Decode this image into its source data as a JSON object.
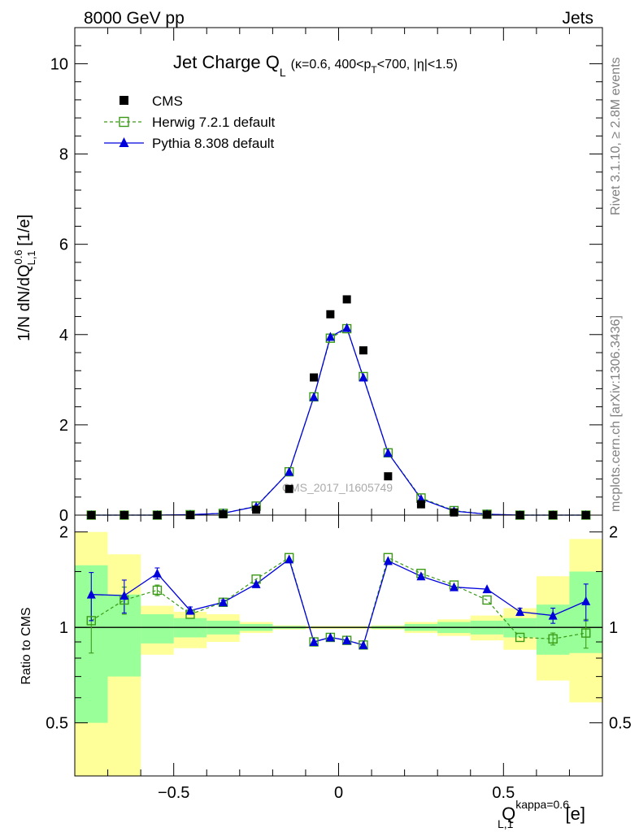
{
  "header": {
    "left": "8000 GeV pp",
    "right": "Jets"
  },
  "side_labels": {
    "rivet": "Rivet 3.1.10, ≥ 2.8M events",
    "mcplots": "mcplots.cern.ch [arXiv:1306.3436]"
  },
  "watermark": "CMS_2017_I1605749",
  "chart_data": [
    {
      "type": "scatter",
      "panel": "main",
      "title": {
        "main": "Jet Charge Q",
        "sub": "L",
        "cond_a": "(κ=0.6, 400<p",
        "cond_sub": "T",
        "cond_b": "<700, |η|<1.5)"
      },
      "ylabel": "1/N dN/dQ_{L,1}^{0.6} [1/e]",
      "xlabel": "Q_{L,1}^{kappa=0.6} [e]",
      "xlim": [
        -0.8,
        0.8
      ],
      "ylim": [
        0,
        10.8
      ],
      "yticks": [
        "0",
        "2",
        "4",
        "6",
        "8",
        "10"
      ],
      "x": [
        -0.75,
        -0.65,
        -0.55,
        -0.45,
        -0.35,
        -0.25,
        -0.15,
        -0.075,
        -0.025,
        0.025,
        0.075,
        0.15,
        0.25,
        0.35,
        0.45,
        0.55,
        0.65,
        0.75
      ],
      "series": [
        {
          "name": "CMS",
          "style": "data",
          "color": "#000000",
          "values": [
            0.0,
            0.0,
            0.0,
            0.0,
            0.02,
            0.12,
            0.58,
            3.05,
            4.45,
            4.78,
            3.65,
            0.86,
            0.24,
            0.06,
            0.01,
            0.0,
            0.0,
            0.0
          ]
        },
        {
          "name": "Herwig 7.2.1 default",
          "style": "dashed-open-square",
          "color": "#3a9a16",
          "values": [
            0.0,
            0.0,
            0.0,
            0.01,
            0.04,
            0.2,
            0.96,
            2.62,
            3.92,
            4.13,
            3.07,
            1.38,
            0.38,
            0.1,
            0.02,
            0.0,
            0.0,
            0.0
          ]
        },
        {
          "name": "Pythia 8.308 default",
          "style": "solid-filled-triangle",
          "color": "#0000dd",
          "values": [
            0.0,
            0.0,
            0.0,
            0.01,
            0.04,
            0.19,
            0.96,
            2.62,
            3.95,
            4.15,
            3.05,
            1.38,
            0.36,
            0.09,
            0.02,
            0.0,
            0.0,
            0.0
          ]
        }
      ]
    },
    {
      "type": "line",
      "panel": "ratio",
      "ylabel": "Ratio to CMS",
      "xlim": [
        -0.8,
        0.8
      ],
      "ylim": [
        0.34,
        2.26
      ],
      "yticks": [
        "0.5",
        "1",
        "2"
      ],
      "xticks": [
        "−0.5",
        "0",
        "0.5"
      ],
      "reference": 1,
      "bands": {
        "bins": [
          [
            -0.8,
            -0.7
          ],
          [
            -0.7,
            -0.6
          ],
          [
            -0.6,
            -0.5
          ],
          [
            -0.5,
            -0.4
          ],
          [
            -0.4,
            -0.3
          ],
          [
            -0.3,
            -0.2
          ],
          [
            -0.2,
            -0.1
          ],
          [
            -0.1,
            -0.05
          ],
          [
            -0.05,
            0.0
          ],
          [
            0.0,
            0.05
          ],
          [
            0.05,
            0.1
          ],
          [
            0.1,
            0.2
          ],
          [
            0.2,
            0.3
          ],
          [
            0.3,
            0.4
          ],
          [
            0.4,
            0.5
          ],
          [
            0.5,
            0.6
          ],
          [
            0.6,
            0.7
          ],
          [
            0.7,
            0.8
          ]
        ],
        "green_color": "#99ff99",
        "yellow_color": "#ffff99",
        "green_lo": [
          0.5,
          0.7,
          0.89,
          0.93,
          0.95,
          0.975,
          0.99,
          0.995,
          0.995,
          0.995,
          0.995,
          0.99,
          0.975,
          0.96,
          0.95,
          0.93,
          0.82,
          0.83
        ],
        "green_hi": [
          1.57,
          1.27,
          1.1,
          1.07,
          1.05,
          1.025,
          1.01,
          1.005,
          1.005,
          1.005,
          1.005,
          1.01,
          1.025,
          1.04,
          1.05,
          1.07,
          1.18,
          1.5
        ],
        "yellow_lo": [
          0.34,
          0.34,
          0.82,
          0.86,
          0.9,
          0.96,
          0.985,
          0.99,
          0.99,
          0.99,
          0.99,
          0.985,
          0.96,
          0.94,
          0.91,
          0.85,
          0.68,
          0.58
        ],
        "yellow_hi": [
          2.0,
          1.7,
          1.17,
          1.12,
          1.1,
          1.04,
          1.015,
          1.01,
          1.01,
          1.01,
          1.01,
          1.015,
          1.04,
          1.06,
          1.09,
          1.15,
          1.45,
          1.9
        ]
      },
      "series": [
        {
          "name": "Herwig 7.2.1 default",
          "color": "#3a9a16",
          "values": [
            1.05,
            1.22,
            1.31,
            1.1,
            1.2,
            1.42,
            1.66,
            0.9,
            0.93,
            0.91,
            0.88,
            1.66,
            1.48,
            1.36,
            1.22,
            0.93,
            0.92,
            0.96
          ],
          "err": [
            0.22,
            0.12,
            0.05,
            0.0,
            0.0,
            0.0,
            0.0,
            0.0,
            0.0,
            0.0,
            0.0,
            0.0,
            0.0,
            0.0,
            0.0,
            0.0,
            0.04,
            0.1
          ]
        },
        {
          "name": "Pythia 8.308 default",
          "color": "#0000dd",
          "values": [
            1.27,
            1.26,
            1.48,
            1.13,
            1.2,
            1.37,
            1.64,
            0.9,
            0.93,
            0.91,
            0.88,
            1.62,
            1.45,
            1.34,
            1.32,
            1.12,
            1.09,
            1.21
          ],
          "err": [
            0.22,
            0.15,
            0.06,
            0.03,
            0.02,
            0.0,
            0.0,
            0.0,
            0.0,
            0.0,
            0.0,
            0.0,
            0.0,
            0.0,
            0.0,
            0.03,
            0.06,
            0.16
          ]
        }
      ]
    }
  ]
}
